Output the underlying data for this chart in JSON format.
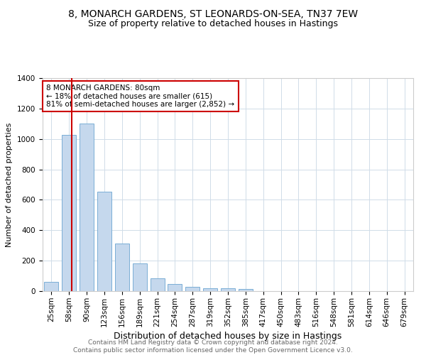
{
  "title": "8, MONARCH GARDENS, ST LEONARDS-ON-SEA, TN37 7EW",
  "subtitle": "Size of property relative to detached houses in Hastings",
  "xlabel": "Distribution of detached houses by size in Hastings",
  "ylabel": "Number of detached properties",
  "bar_labels": [
    "25sqm",
    "58sqm",
    "90sqm",
    "123sqm",
    "156sqm",
    "189sqm",
    "221sqm",
    "254sqm",
    "287sqm",
    "319sqm",
    "352sqm",
    "385sqm",
    "417sqm",
    "450sqm",
    "483sqm",
    "516sqm",
    "548sqm",
    "581sqm",
    "614sqm",
    "646sqm",
    "679sqm"
  ],
  "bar_values": [
    60,
    1025,
    1100,
    655,
    315,
    180,
    85,
    45,
    28,
    20,
    18,
    12,
    0,
    0,
    0,
    0,
    0,
    0,
    0,
    0,
    0
  ],
  "bar_color": "#c5d8ed",
  "bar_edge_color": "#7aaed6",
  "highlight_line_color": "#cc0000",
  "annotation_text": "8 MONARCH GARDENS: 80sqm\n← 18% of detached houses are smaller (615)\n81% of semi-detached houses are larger (2,852) →",
  "annotation_box_color": "#ffffff",
  "annotation_box_edge_color": "#cc0000",
  "ylim": [
    0,
    1400
  ],
  "yticks": [
    0,
    200,
    400,
    600,
    800,
    1000,
    1200,
    1400
  ],
  "grid_color": "#d0dce8",
  "background_color": "#ffffff",
  "footnote": "Contains HM Land Registry data © Crown copyright and database right 2024.\nContains public sector information licensed under the Open Government Licence v3.0.",
  "title_fontsize": 10,
  "subtitle_fontsize": 9,
  "xlabel_fontsize": 9,
  "ylabel_fontsize": 8,
  "tick_fontsize": 7.5,
  "annot_fontsize": 7.5,
  "footnote_fontsize": 6.5
}
